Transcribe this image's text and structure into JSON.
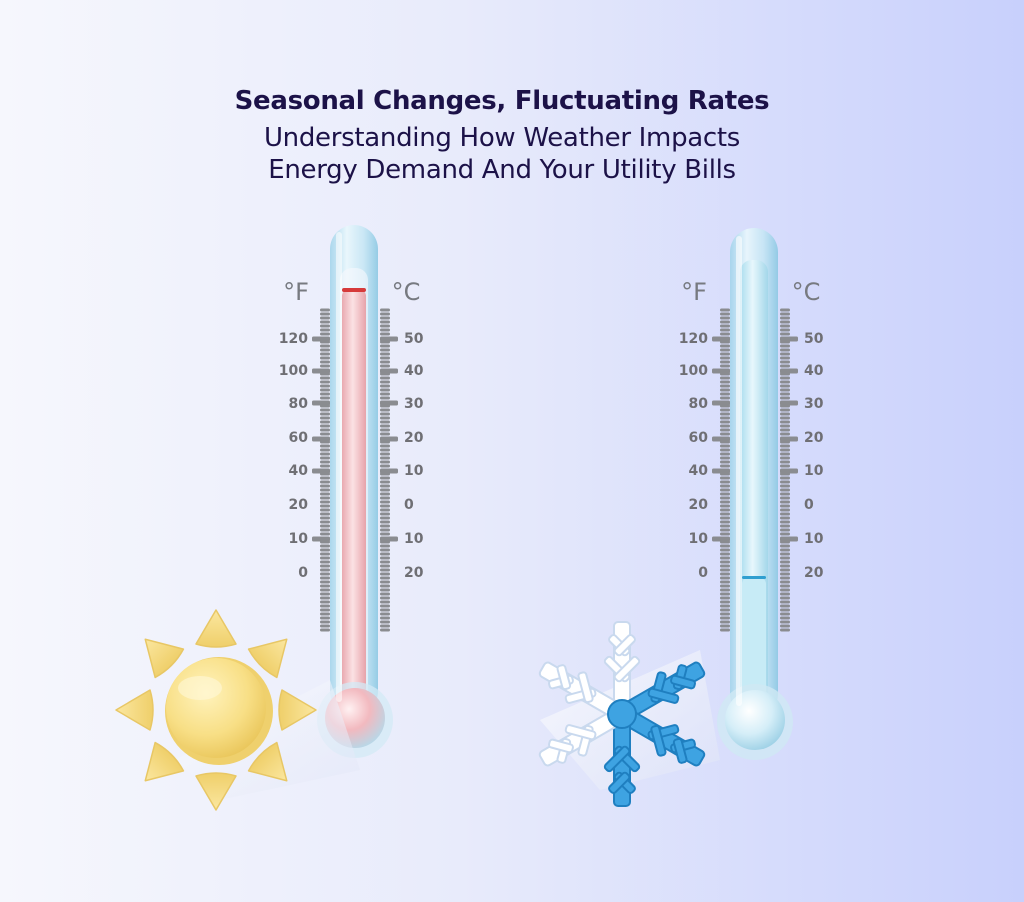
{
  "header": {
    "title": "Seasonal Changes, Fluctuating Rates",
    "subtitle_line1": "Understanding How Weather Impacts",
    "subtitle_line2": "Energy Demand And Your Utility Bills"
  },
  "thermometers": {
    "hot": {
      "unit_left": "°F",
      "unit_right": "°C",
      "fahrenheit_ticks": [
        "120",
        "100",
        "80",
        "60",
        "40",
        "20",
        "10",
        "0"
      ],
      "celsius_ticks": [
        "50",
        "40",
        "30",
        "20",
        "10",
        "0",
        "10",
        "20"
      ],
      "liquid_color": "#f3c9cc",
      "liquid_top_color": "#d63a3a",
      "icon": "sun-icon"
    },
    "cold": {
      "unit_left": "°F",
      "unit_right": "°C",
      "fahrenheit_ticks": [
        "120",
        "100",
        "80",
        "60",
        "40",
        "20",
        "10",
        "0"
      ],
      "celsius_ticks": [
        "50",
        "40",
        "30",
        "20",
        "10",
        "0",
        "10",
        "20"
      ],
      "liquid_color": "#cdeef7",
      "liquid_top_color": "#2f9fd0",
      "icon": "snowflake-icon"
    }
  },
  "colors": {
    "title": "#1c1248",
    "sun": "#f7df86",
    "snowflake": "#3ea3e2"
  }
}
